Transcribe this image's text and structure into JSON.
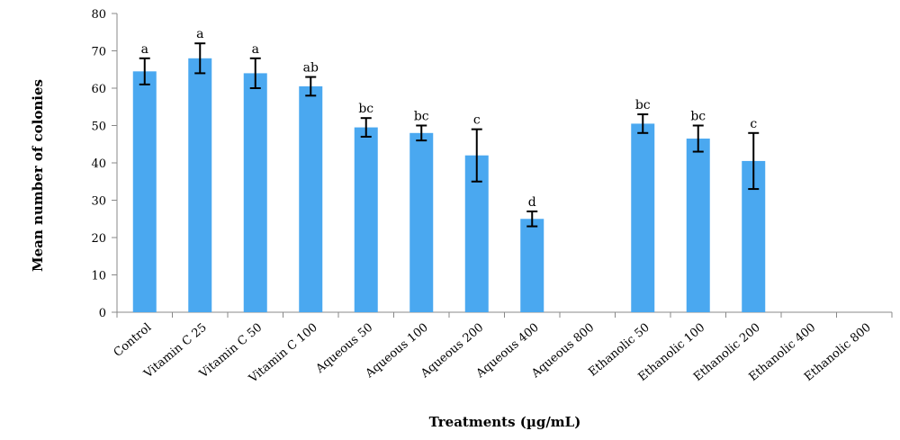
{
  "chart_data": {
    "type": "bar",
    "xlabel": "Treatments (µg/mL)",
    "ylabel": "Mean number of colonies",
    "ylim": [
      0,
      80
    ],
    "yticks": [
      0,
      10,
      20,
      30,
      40,
      50,
      60,
      70,
      80
    ],
    "grid": false,
    "bar_color": "#4aa8f0",
    "categories": [
      "Control",
      "Vitamin C 25",
      "Vitamin C 50",
      "Vitamin C 100",
      "Aqueous 50",
      "Aqueous 100",
      "Aqueous 200",
      "Aqueous 400",
      "Aqueous 800",
      "Ethanolic 50",
      "Ethanolic 100",
      "Ethanolic 200",
      "Ethanolic 400",
      "Ethanolic 800"
    ],
    "values": [
      64.5,
      68,
      64,
      60.5,
      49.5,
      48,
      42,
      25,
      0,
      50.5,
      46.5,
      40.5,
      0,
      0
    ],
    "errors": [
      3.5,
      4,
      4,
      2.5,
      2.5,
      2,
      7,
      2,
      null,
      2.5,
      3.5,
      7.5,
      null,
      null
    ],
    "labels": [
      "a",
      "a",
      "a",
      "ab",
      "bc",
      "bc",
      "c",
      "d",
      "",
      "bc",
      "bc",
      "c",
      "",
      ""
    ]
  }
}
